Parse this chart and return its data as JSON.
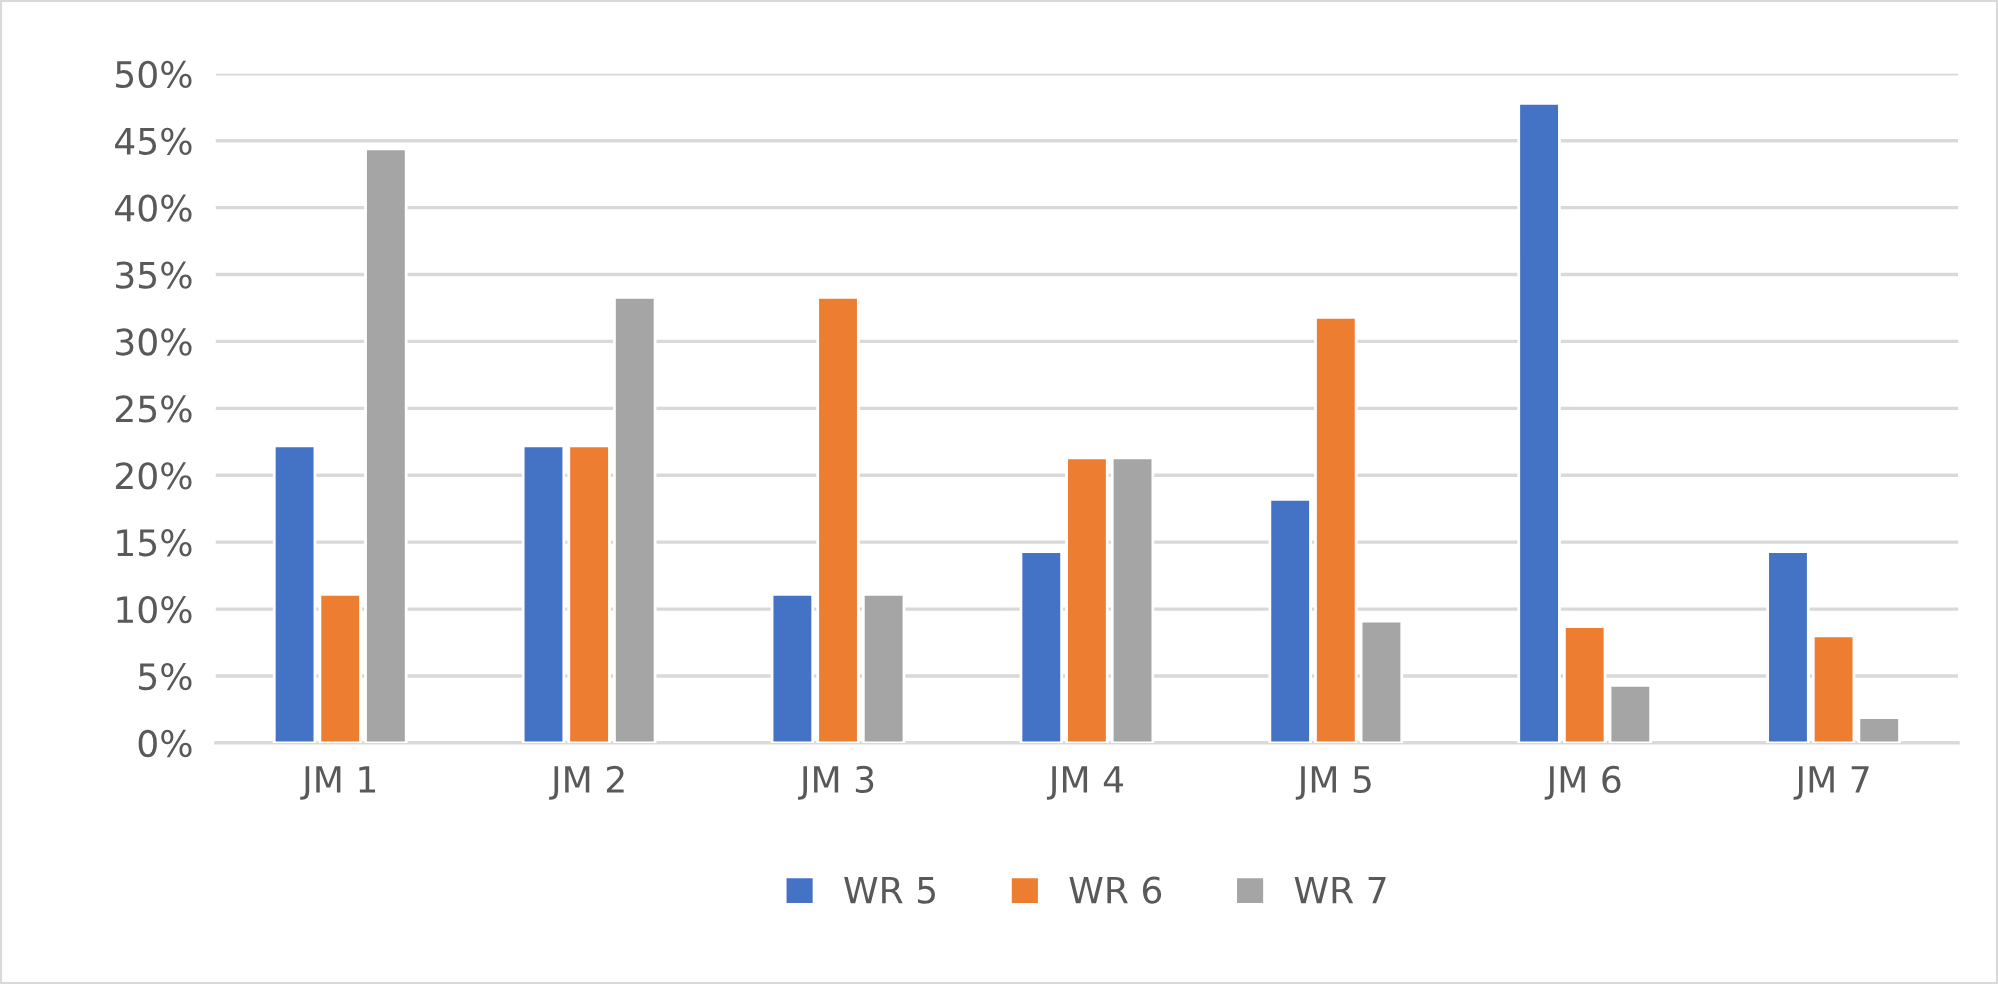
{
  "chart_data": {
    "type": "bar",
    "categories": [
      "JM 1",
      "JM 2",
      "JM 3",
      "JM 4",
      "JM 5",
      "JM 6",
      "JM 7"
    ],
    "series": [
      {
        "name": "WR 5",
        "color": "#4472c4",
        "values": [
          22.2,
          22.2,
          11.1,
          14.3,
          18.2,
          47.8,
          14.3
        ]
      },
      {
        "name": "WR 6",
        "color": "#ed7d31",
        "values": [
          11.1,
          22.2,
          33.3,
          21.3,
          31.8,
          8.7,
          8.0
        ]
      },
      {
        "name": "WR 7",
        "color": "#a5a5a5",
        "values": [
          44.4,
          33.3,
          11.1,
          21.3,
          9.1,
          4.3,
          1.9
        ]
      }
    ],
    "ylim": [
      0,
      50
    ],
    "yticks": [
      {
        "value": 0,
        "label": "0%"
      },
      {
        "value": 5,
        "label": "5%"
      },
      {
        "value": 10,
        "label": "10%"
      },
      {
        "value": 15,
        "label": "15%"
      },
      {
        "value": 20,
        "label": "20%"
      },
      {
        "value": 25,
        "label": "25%"
      },
      {
        "value": 30,
        "label": "30%"
      },
      {
        "value": 35,
        "label": "35%"
      },
      {
        "value": 40,
        "label": "40%"
      },
      {
        "value": 45,
        "label": "45%"
      },
      {
        "value": 50,
        "label": "50%"
      }
    ],
    "grid": "y",
    "legend": "bottom"
  }
}
